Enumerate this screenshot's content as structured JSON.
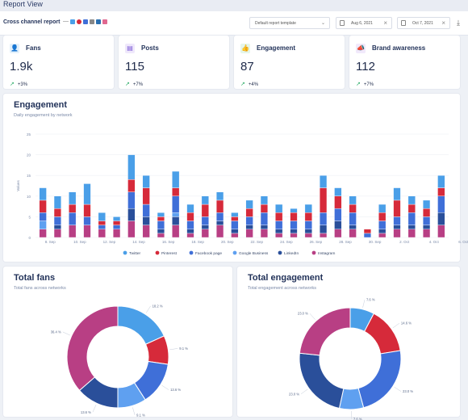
{
  "window": {
    "title": "Report View"
  },
  "filters": {
    "report_name": "Cross channel report",
    "separator": "—",
    "template_label": "Default report template",
    "date_from": "Aug 6, 2021",
    "date_to": "Oct 7, 2021"
  },
  "social_icons": [
    "twitter",
    "pinterest",
    "facebook",
    "google",
    "linkedin",
    "instagram"
  ],
  "kpis": [
    {
      "icon": "fans-icon",
      "label": "Fans",
      "value": "1.9k",
      "change": "+3%",
      "icon_bg": "#e4f1fb",
      "icon_color": "#3a8fd8"
    },
    {
      "icon": "posts-icon",
      "label": "Posts",
      "value": "115",
      "change": "+7%",
      "icon_bg": "#efe8fb",
      "icon_color": "#7c5bd6"
    },
    {
      "icon": "engagement-icon",
      "label": "Engagement",
      "value": "87",
      "change": "+4%",
      "icon_bg": "#e5f6e9",
      "icon_color": "#37a85a"
    },
    {
      "icon": "brand-awareness-icon",
      "label": "Brand awareness",
      "value": "112",
      "change": "+7%",
      "icon_bg": "#f1e9fb",
      "icon_color": "#9b5bd6"
    }
  ],
  "engagement": {
    "title": "Engagement",
    "subtitle": "Daily engagement by network"
  },
  "total_fans": {
    "title": "Total fans",
    "subtitle": "Total fans across networks"
  },
  "total_engagement": {
    "title": "Total engagement",
    "subtitle": "Total engagement across networks"
  },
  "colors": {
    "twitter": "#4a9fe8",
    "pinterest": "#d62a3a",
    "facebook": "#3f6fd8",
    "google": "#5fa0f0",
    "linkedin": "#2a4f9a",
    "instagram": "#b83f84"
  },
  "chart_data": [
    {
      "type": "bar",
      "stacked": true,
      "title": "Engagement",
      "subtitle": "Daily engagement by network",
      "ylabel": "Values",
      "ylim": [
        0,
        25
      ],
      "yticks": [
        0,
        5,
        10,
        15,
        20,
        25
      ],
      "xticks": [
        "8. Sep",
        "10. Sep",
        "12. Sep",
        "14. Sep",
        "16. Sep",
        "18. Sep",
        "20. Sep",
        "22. Sep",
        "24. Sep",
        "26. Sep",
        "28. Sep",
        "30. Sep",
        "2. Oct",
        "4. Oct",
        "6. Oct"
      ],
      "series_names": [
        "Twitter",
        "Pinterest",
        "Facebook page",
        "Google Business",
        "LinkedIn",
        "Instagram"
      ],
      "totals": [
        12,
        10,
        11,
        13,
        6,
        5,
        20,
        15,
        6,
        16,
        8,
        10,
        11,
        6,
        9,
        10,
        8,
        7,
        8,
        15,
        12,
        10,
        2,
        8,
        12,
        10,
        9,
        15
      ],
      "stacks": [
        [
          3,
          3,
          2,
          2,
          0,
          2
        ],
        [
          3,
          2,
          2,
          0,
          1,
          2
        ],
        [
          3,
          2,
          3,
          0,
          0,
          3
        ],
        [
          5,
          3,
          2,
          0,
          0,
          3
        ],
        [
          2,
          1,
          1,
          0,
          0,
          2
        ],
        [
          1,
          1,
          1,
          0,
          0,
          2
        ],
        [
          6,
          3,
          4,
          0,
          3,
          4
        ],
        [
          3,
          4,
          3,
          0,
          2,
          3
        ],
        [
          1,
          1,
          2,
          0,
          1,
          1
        ],
        [
          4,
          2,
          4,
          1,
          2,
          3
        ],
        [
          2,
          2,
          2,
          0,
          1,
          1
        ],
        [
          2,
          3,
          2,
          0,
          1,
          2
        ],
        [
          2,
          3,
          2,
          0,
          1,
          3
        ],
        [
          1,
          1,
          2,
          0,
          1,
          1
        ],
        [
          2,
          2,
          2,
          0,
          1,
          2
        ],
        [
          2,
          2,
          3,
          0,
          1,
          2
        ],
        [
          2,
          2,
          2,
          0,
          1,
          1
        ],
        [
          1,
          2,
          2,
          0,
          1,
          1
        ],
        [
          2,
          2,
          2,
          0,
          1,
          1
        ],
        [
          3,
          6,
          3,
          0,
          2,
          1
        ],
        [
          2,
          3,
          3,
          0,
          2,
          2
        ],
        [
          2,
          2,
          3,
          0,
          1,
          2
        ],
        [
          0,
          1,
          1,
          0,
          0,
          0
        ],
        [
          2,
          2,
          2,
          0,
          1,
          1
        ],
        [
          3,
          4,
          2,
          0,
          1,
          2
        ],
        [
          2,
          2,
          3,
          0,
          1,
          2
        ],
        [
          2,
          2,
          2,
          0,
          1,
          2
        ],
        [
          3,
          2,
          4,
          0,
          3,
          3
        ]
      ]
    },
    {
      "type": "pie",
      "title": "Total fans",
      "subtitle": "Total fans across networks",
      "labels": [
        "Twitter",
        "Pinterest",
        "Facebook page",
        "Google Business",
        "LinkedIn",
        "Instagram"
      ],
      "values": [
        18.2,
        9.1,
        13.6,
        9.1,
        13.6,
        36.4
      ],
      "value_labels": [
        "18.2 %",
        "9.1 %",
        "13.6 %",
        "9.1 %",
        "13.6 %",
        "36.4 %"
      ]
    },
    {
      "type": "pie",
      "title": "Total engagement",
      "subtitle": "Total engagement across networks",
      "labels": [
        "Twitter",
        "Pinterest",
        "Facebook page",
        "Google Business",
        "LinkedIn",
        "Instagram"
      ],
      "values": [
        7.6,
        14.6,
        23.0,
        7.6,
        23.0,
        23.0
      ],
      "value_labels": [
        "7.6 %",
        "14.6 %",
        "23.0 %",
        "7.6 %",
        "23.0 %",
        "23.0 %"
      ]
    }
  ]
}
